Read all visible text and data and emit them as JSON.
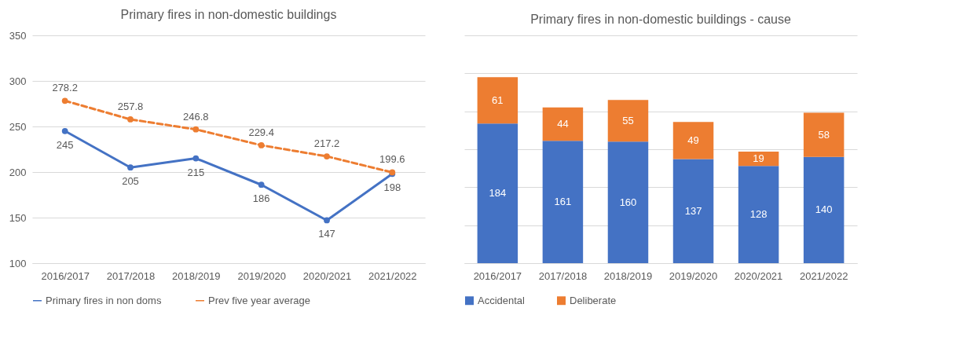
{
  "chart_data": [
    {
      "type": "line",
      "title": "Primary fires in non-domestic buildings",
      "categories": [
        "2016/2017",
        "2017/2018",
        "2018/2019",
        "2019/2020",
        "2020/2021",
        "2021/2022"
      ],
      "series": [
        {
          "name": "Primary fires in non doms",
          "color": "#4472c4",
          "line_style": "solid",
          "values": [
            245,
            205,
            215,
            186,
            147,
            198
          ]
        },
        {
          "name": "Prev five year average",
          "color": "#ed7d31",
          "line_style": "dashed",
          "values": [
            278.2,
            257.8,
            246.8,
            229.4,
            217.2,
            199.6
          ]
        }
      ],
      "ylim": [
        100,
        350
      ],
      "yticks": [
        100,
        150,
        200,
        250,
        300,
        350
      ],
      "grid": "y",
      "legend": "bottom",
      "marker": "circle",
      "data_labels": true
    },
    {
      "type": "bar",
      "title": "Primary fires in non-domestic buildings - cause",
      "categories": [
        "2016/2017",
        "2017/2018",
        "2018/2019",
        "2019/2020",
        "2020/2021",
        "2021/2022"
      ],
      "stacked": true,
      "series": [
        {
          "name": "Accidental",
          "color": "#4472c4",
          "values": [
            184,
            161,
            160,
            137,
            128,
            140
          ]
        },
        {
          "name": "Deliberate",
          "color": "#ed7d31",
          "values": [
            61,
            44,
            55,
            49,
            19,
            58
          ]
        }
      ],
      "ylim": [
        0,
        300
      ],
      "yticks": [
        {
          "value": 0,
          "label": null
        },
        {
          "value": 50,
          "label": null
        },
        {
          "value": 100,
          "label": null
        },
        {
          "value": 150,
          "label": null
        },
        {
          "value": 200,
          "label": null
        },
        {
          "value": 250,
          "label": null
        },
        {
          "value": 300,
          "label": null
        }
      ],
      "tick_labels": "x",
      "grid": "y",
      "legend": "bottom",
      "data_labels": true
    }
  ]
}
